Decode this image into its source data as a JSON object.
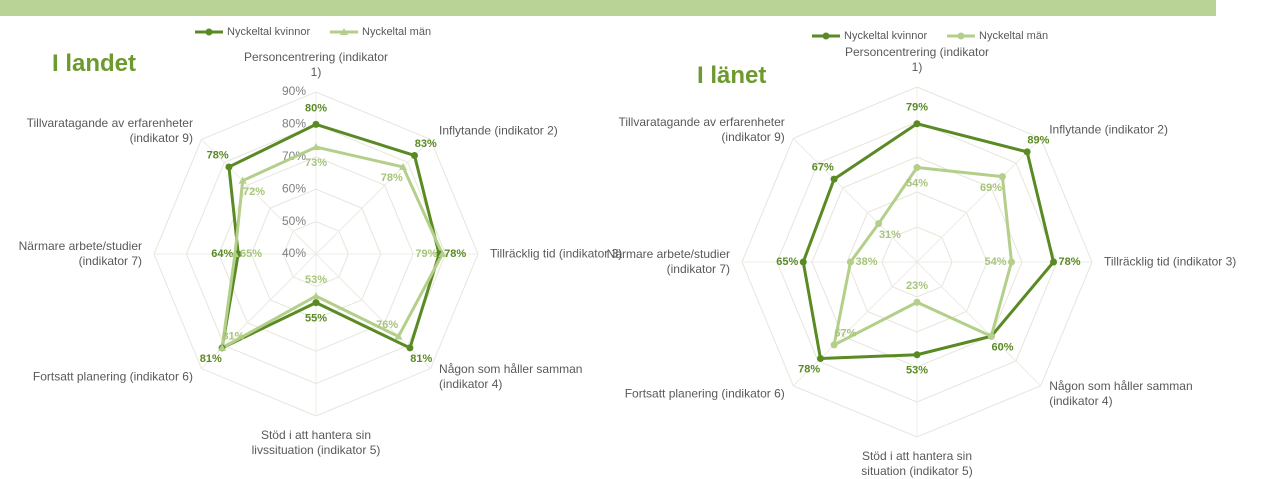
{
  "chart_data": [
    {
      "type": "radar",
      "title": "I landet",
      "categories": [
        "Personcentrering (indikator 1)",
        "Inflytande (indikator 2)",
        "Tillräcklig tid (indikator 3)",
        "Någon som håller samman (indikator 4)",
        "Stöd i att hantera sin livssituation (indikator 5)",
        "Fortsatt planering (indikator 6)",
        "Närmare arbete/studier (indikator 7)",
        "Tillvaratagande av erfarenheter (indikator 9)"
      ],
      "series": [
        {
          "name": "Nyckeltal kvinnor",
          "color": "#5a8a24",
          "marker": "circle",
          "values": [
            80,
            83,
            78,
            81,
            55,
            81,
            64,
            78
          ],
          "value_labels": [
            "80%",
            "83%",
            "78%",
            "81%",
            "55%",
            "81%",
            "64%",
            "78%"
          ]
        },
        {
          "name": "Nyckeltal män",
          "color": "#b3cf8a",
          "marker": "triangle",
          "values": [
            73,
            78,
            79,
            76,
            53,
            81,
            65,
            72
          ],
          "value_labels": [
            "73%",
            "78%",
            "79%",
            "76%",
            "53%",
            "81%",
            "65%",
            "72%"
          ]
        }
      ],
      "rlim": [
        40,
        90
      ],
      "rticks": [
        {
          "value": 40,
          "label": "40%"
        },
        {
          "value": 50,
          "label": "50%"
        },
        {
          "value": 60,
          "label": "60%"
        },
        {
          "value": 70,
          "label": "70%"
        },
        {
          "value": 80,
          "label": "80%"
        },
        {
          "value": 90,
          "label": "90%"
        }
      ],
      "grid": true
    },
    {
      "type": "radar",
      "title": "I länet",
      "categories": [
        "Personcentrering (indikator 1)",
        "Inflytande (indikator 2)",
        "Tillräcklig tid (indikator 3)",
        "Någon som håller samman (indikator 4)",
        "Stöd i att hantera sin situation (indikator 5)",
        "Fortsatt planering (indikator 6)",
        "Närmare arbete/studier (indikator 7)",
        "Tillvaratagande av erfarenheter (indikator 9)"
      ],
      "series": [
        {
          "name": "Nyckeltal kvinnor",
          "color": "#5a8a24",
          "marker": "circle",
          "values": [
            79,
            89,
            78,
            60,
            53,
            78,
            65,
            67
          ],
          "value_labels": [
            "79%",
            "89%",
            "78%",
            "60%",
            "53%",
            "78%",
            "65%",
            "67%"
          ]
        },
        {
          "name": "Nyckeltal män",
          "color": "#b3cf8a",
          "marker": "circle",
          "values": [
            54,
            69,
            54,
            60,
            23,
            67,
            38,
            31
          ],
          "value_labels": [
            "54%",
            "69%",
            "54%",
            null,
            "23%",
            "67%",
            "38%",
            "31%"
          ]
        }
      ],
      "rlim": [
        0,
        100
      ],
      "grid": true
    }
  ]
}
